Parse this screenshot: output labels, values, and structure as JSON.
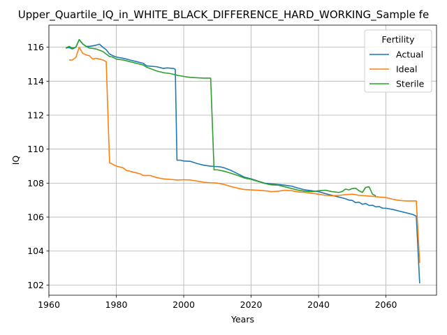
{
  "chart_data": {
    "type": "line",
    "title": "Upper_Quartile_IQ_in_WHITE_BLACK_DIFFERENCE_HARD_WORKING_Sample fe",
    "xlabel": "Years",
    "ylabel": "IQ",
    "xlim": [
      1960,
      2075
    ],
    "ylim": [
      101.4,
      117.3
    ],
    "xticks": [
      1960,
      1980,
      2000,
      2020,
      2040,
      2060
    ],
    "yticks": [
      102,
      104,
      106,
      108,
      110,
      112,
      114,
      116
    ],
    "grid": true,
    "legend": {
      "title": "Fertility",
      "placement": "top-right"
    },
    "series": [
      {
        "name": "Actual",
        "color": "#1f77b4",
        "points": [
          [
            1965,
            115.95
          ],
          [
            1966,
            115.98
          ],
          [
            1967,
            115.9
          ],
          [
            1968,
            116.0
          ],
          [
            1969,
            116.45
          ],
          [
            1970,
            116.2
          ],
          [
            1971,
            116.05
          ],
          [
            1972,
            116.05
          ],
          [
            1973,
            116.08
          ],
          [
            1974,
            116.12
          ],
          [
            1975,
            116.18
          ],
          [
            1976,
            116.0
          ],
          [
            1977,
            115.85
          ],
          [
            1978,
            115.6
          ],
          [
            1979,
            115.5
          ],
          [
            1980,
            115.42
          ],
          [
            1982,
            115.35
          ],
          [
            1984,
            115.25
          ],
          [
            1986,
            115.15
          ],
          [
            1988,
            115.05
          ],
          [
            1989,
            114.9
          ],
          [
            1992,
            114.85
          ],
          [
            1994,
            114.75
          ],
          [
            1995,
            114.78
          ],
          [
            1997,
            114.75
          ],
          [
            1997.5,
            114.7
          ],
          [
            1998,
            109.35
          ],
          [
            1999,
            109.35
          ],
          [
            2000,
            109.3
          ],
          [
            2002,
            109.28
          ],
          [
            2004,
            109.15
          ],
          [
            2006,
            109.05
          ],
          [
            2008,
            109.0
          ],
          [
            2009,
            108.98
          ],
          [
            2010,
            108.97
          ],
          [
            2011,
            108.95
          ],
          [
            2012,
            108.9
          ],
          [
            2014,
            108.75
          ],
          [
            2016,
            108.55
          ],
          [
            2018,
            108.35
          ],
          [
            2020,
            108.25
          ],
          [
            2022,
            108.12
          ],
          [
            2024,
            108.0
          ],
          [
            2026,
            107.95
          ],
          [
            2028,
            107.92
          ],
          [
            2030,
            107.88
          ],
          [
            2032,
            107.82
          ],
          [
            2034,
            107.7
          ],
          [
            2036,
            107.6
          ],
          [
            2038,
            107.55
          ],
          [
            2040,
            107.5
          ],
          [
            2042,
            107.38
          ],
          [
            2044,
            107.28
          ],
          [
            2046,
            107.18
          ],
          [
            2048,
            107.08
          ],
          [
            2049,
            107.0
          ],
          [
            2050,
            106.98
          ],
          [
            2051,
            106.85
          ],
          [
            2052,
            106.88
          ],
          [
            2053,
            106.75
          ],
          [
            2054,
            106.8
          ],
          [
            2055,
            106.68
          ],
          [
            2056,
            106.7
          ],
          [
            2057,
            106.6
          ],
          [
            2058,
            106.62
          ],
          [
            2059,
            106.52
          ],
          [
            2060,
            106.52
          ],
          [
            2062,
            106.45
          ],
          [
            2064,
            106.35
          ],
          [
            2066,
            106.25
          ],
          [
            2068,
            106.15
          ],
          [
            2069,
            106.05
          ],
          [
            2070,
            102.1
          ]
        ]
      },
      {
        "name": "Ideal",
        "color": "#ff7f0e",
        "points": [
          [
            1966,
            115.25
          ],
          [
            1967,
            115.25
          ],
          [
            1968,
            115.4
          ],
          [
            1969,
            116.0
          ],
          [
            1970,
            115.65
          ],
          [
            1971,
            115.55
          ],
          [
            1972,
            115.5
          ],
          [
            1973,
            115.3
          ],
          [
            1974,
            115.35
          ],
          [
            1975,
            115.3
          ],
          [
            1976,
            115.25
          ],
          [
            1977,
            115.15
          ],
          [
            1978,
            109.2
          ],
          [
            1979,
            109.1
          ],
          [
            1980,
            109.0
          ],
          [
            1982,
            108.9
          ],
          [
            1983,
            108.75
          ],
          [
            1985,
            108.65
          ],
          [
            1987,
            108.55
          ],
          [
            1988,
            108.45
          ],
          [
            1990,
            108.45
          ],
          [
            1992,
            108.32
          ],
          [
            1994,
            108.25
          ],
          [
            1996,
            108.22
          ],
          [
            1998,
            108.18
          ],
          [
            2000,
            108.2
          ],
          [
            2002,
            108.18
          ],
          [
            2004,
            108.12
          ],
          [
            2006,
            108.05
          ],
          [
            2008,
            108.02
          ],
          [
            2010,
            108.0
          ],
          [
            2012,
            107.92
          ],
          [
            2014,
            107.8
          ],
          [
            2016,
            107.7
          ],
          [
            2018,
            107.62
          ],
          [
            2020,
            107.6
          ],
          [
            2022,
            107.58
          ],
          [
            2024,
            107.55
          ],
          [
            2026,
            107.5
          ],
          [
            2028,
            107.52
          ],
          [
            2030,
            107.58
          ],
          [
            2032,
            107.55
          ],
          [
            2034,
            107.48
          ],
          [
            2036,
            107.45
          ],
          [
            2038,
            107.4
          ],
          [
            2040,
            107.35
          ],
          [
            2042,
            107.28
          ],
          [
            2044,
            107.25
          ],
          [
            2046,
            107.28
          ],
          [
            2048,
            107.32
          ],
          [
            2050,
            107.35
          ],
          [
            2052,
            107.28
          ],
          [
            2054,
            107.25
          ],
          [
            2056,
            107.22
          ],
          [
            2058,
            107.18
          ],
          [
            2060,
            107.15
          ],
          [
            2062,
            107.05
          ],
          [
            2064,
            106.98
          ],
          [
            2066,
            106.95
          ],
          [
            2068,
            106.95
          ],
          [
            2069,
            106.95
          ],
          [
            2070,
            103.3
          ]
        ]
      },
      {
        "name": "Sterile",
        "color": "#2ca02c",
        "points": [
          [
            1965,
            115.95
          ],
          [
            1966,
            116.05
          ],
          [
            1967,
            115.95
          ],
          [
            1968,
            116.0
          ],
          [
            1969,
            116.45
          ],
          [
            1970,
            116.2
          ],
          [
            1971,
            116.05
          ],
          [
            1972,
            115.95
          ],
          [
            1974,
            115.9
          ],
          [
            1976,
            115.75
          ],
          [
            1977,
            115.6
          ],
          [
            1978,
            115.45
          ],
          [
            1979,
            115.42
          ],
          [
            1980,
            115.3
          ],
          [
            1982,
            115.25
          ],
          [
            1984,
            115.15
          ],
          [
            1986,
            115.05
          ],
          [
            1988,
            114.95
          ],
          [
            1989,
            114.82
          ],
          [
            1990,
            114.75
          ],
          [
            1992,
            114.6
          ],
          [
            1994,
            114.5
          ],
          [
            1996,
            114.45
          ],
          [
            1998,
            114.35
          ],
          [
            2000,
            114.28
          ],
          [
            2002,
            114.22
          ],
          [
            2004,
            114.2
          ],
          [
            2006,
            114.18
          ],
          [
            2008,
            114.18
          ],
          [
            2009,
            108.78
          ],
          [
            2010,
            108.78
          ],
          [
            2012,
            108.7
          ],
          [
            2014,
            108.58
          ],
          [
            2016,
            108.45
          ],
          [
            2018,
            108.3
          ],
          [
            2020,
            108.22
          ],
          [
            2022,
            108.1
          ],
          [
            2024,
            107.98
          ],
          [
            2026,
            107.9
          ],
          [
            2028,
            107.88
          ],
          [
            2030,
            107.78
          ],
          [
            2032,
            107.68
          ],
          [
            2034,
            107.58
          ],
          [
            2036,
            107.52
          ],
          [
            2038,
            107.5
          ],
          [
            2040,
            107.55
          ],
          [
            2042,
            107.58
          ],
          [
            2044,
            107.5
          ],
          [
            2046,
            107.45
          ],
          [
            2047,
            107.5
          ],
          [
            2048,
            107.65
          ],
          [
            2049,
            107.6
          ],
          [
            2050,
            107.68
          ],
          [
            2051,
            107.7
          ],
          [
            2052,
            107.55
          ],
          [
            2053,
            107.45
          ],
          [
            2054,
            107.75
          ],
          [
            2055,
            107.78
          ],
          [
            2056,
            107.35
          ],
          [
            2057,
            107.25
          ]
        ]
      }
    ]
  }
}
